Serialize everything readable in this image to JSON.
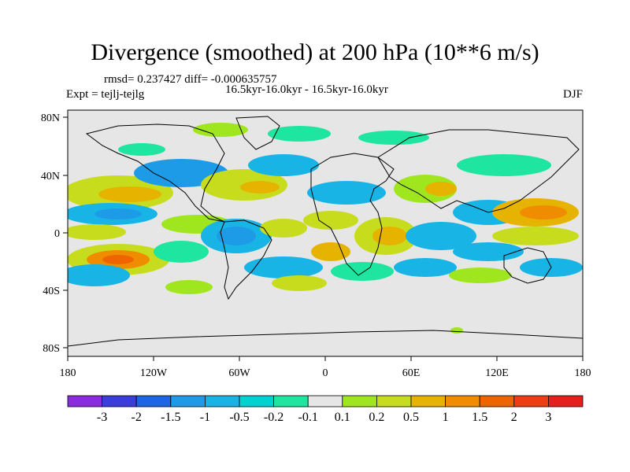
{
  "title": "Divergence (smoothed) at 200 hPa (10**6 m/s)",
  "stats_line": "rmsd= 0.237427 diff= -0.000635757",
  "period_line": "16.5kyr-16.0kyr - 16.5kyr-16.0kyr",
  "experiment_line": "Expt = tejlj-tejlg",
  "season": "DJF",
  "lat_labels": [
    "80N",
    "40N",
    "0",
    "40S",
    "80S"
  ],
  "lon_labels": [
    "180",
    "120W",
    "60W",
    "0",
    "60E",
    "120E",
    "180"
  ],
  "colorbar": {
    "labels": [
      "-3",
      "-2",
      "-1.5",
      "-1",
      "-0.5",
      "-0.2",
      "-0.1",
      "0.1",
      "0.2",
      "0.5",
      "1",
      "1.5",
      "2",
      "3"
    ],
    "colors": [
      "#8a2be2",
      "#3c3cdc",
      "#1e64e6",
      "#1e9be6",
      "#19b4e6",
      "#00d2d2",
      "#1ee6a0",
      "#e6e6e6",
      "#a0e61e",
      "#c8dc1e",
      "#e6b400",
      "#f08c00",
      "#f06400",
      "#f03c14",
      "#e61e1e"
    ]
  },
  "colors": {
    "land_outline": "#000000",
    "neutral": "#e6e6e6"
  }
}
